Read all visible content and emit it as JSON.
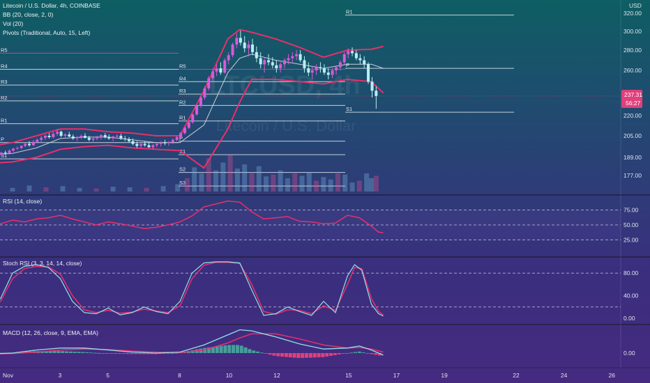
{
  "chart_data": {
    "type": "candlestick",
    "timeframe": "4h",
    "header": {
      "title": "Litecoin / U.S. Dollar, 4h, COINBASE",
      "indicators": [
        "BB (20, close, 2, 0)",
        "Vol (20)",
        "Pivots (Traditional, Auto, 15, Left)"
      ]
    },
    "watermark": {
      "symbol": "LTCUSD, 4h",
      "name": "Litecoin / U.S. Dollar"
    },
    "price_axis": {
      "unit": "USD",
      "ticks": [
        "320.00",
        "300.00",
        "280.00",
        "260.00",
        "220.00",
        "205.00",
        "189.00",
        "177.00"
      ],
      "tick_values": [
        320,
        300,
        280,
        260,
        220,
        205,
        189,
        177
      ],
      "current_price": "237.31",
      "countdown": "56:27"
    },
    "x_axis": {
      "ticks": [
        "Nov",
        "3",
        "5",
        "8",
        "10",
        "12",
        "15",
        "17",
        "19",
        "22",
        "24",
        "26"
      ],
      "tick_days": [
        1,
        3,
        5,
        8,
        10,
        12,
        15,
        17,
        19,
        22,
        24,
        26
      ]
    },
    "candles": [
      [
        0.2,
        190,
        191,
        188,
        190.5
      ],
      [
        0.37,
        190.5,
        192,
        189.5,
        191
      ],
      [
        0.53,
        191,
        193,
        190,
        192.5
      ],
      [
        0.7,
        192.5,
        194,
        191.5,
        192
      ],
      [
        0.87,
        192,
        195,
        191,
        194
      ],
      [
        1.03,
        194,
        196,
        193,
        195.5
      ],
      [
        1.2,
        195.5,
        197,
        194.5,
        196
      ],
      [
        1.37,
        196,
        198,
        195,
        197.5
      ],
      [
        1.53,
        197.5,
        200,
        196.5,
        199
      ],
      [
        1.7,
        199,
        201,
        197,
        198
      ],
      [
        1.87,
        198,
        202,
        197.5,
        200.5
      ],
      [
        2.03,
        200.5,
        203,
        199.5,
        202
      ],
      [
        2.2,
        202,
        205,
        200,
        203.5
      ],
      [
        2.37,
        203.5,
        206,
        202,
        205
      ],
      [
        2.53,
        205,
        207,
        203,
        204
      ],
      [
        2.7,
        204,
        208,
        203,
        206.5
      ],
      [
        2.87,
        206.5,
        210,
        205,
        208
      ],
      [
        3.03,
        208,
        209,
        204,
        205
      ],
      [
        3.2,
        205,
        207,
        203,
        206
      ],
      [
        3.37,
        206,
        208,
        204,
        204.5
      ],
      [
        3.53,
        204.5,
        206,
        202,
        203
      ],
      [
        3.7,
        203,
        205,
        201,
        204
      ],
      [
        3.87,
        204,
        206,
        202.5,
        205
      ],
      [
        4.03,
        205,
        207,
        203,
        203.5
      ],
      [
        4.2,
        203.5,
        205,
        201,
        202
      ],
      [
        4.37,
        202,
        204,
        200,
        203
      ],
      [
        4.53,
        203,
        205,
        201.5,
        204
      ],
      [
        4.7,
        204,
        206,
        202,
        205.5
      ],
      [
        4.87,
        205.5,
        207,
        203,
        204
      ],
      [
        5.03,
        204,
        206,
        202,
        203
      ],
      [
        5.2,
        203,
        205,
        201,
        204.5
      ],
      [
        5.37,
        204.5,
        206,
        203,
        205
      ],
      [
        5.53,
        205,
        206.5,
        202,
        203
      ],
      [
        5.7,
        203,
        205,
        201,
        202.5
      ],
      [
        5.87,
        202.5,
        204,
        200,
        201
      ],
      [
        6.03,
        201,
        203,
        198,
        199
      ],
      [
        6.2,
        199,
        201,
        196,
        197.5
      ],
      [
        6.37,
        197.5,
        200,
        196,
        199
      ],
      [
        6.53,
        199,
        201,
        197,
        198
      ],
      [
        6.7,
        198,
        200,
        196,
        196.5
      ],
      [
        6.87,
        196.5,
        199,
        195,
        198
      ],
      [
        7.03,
        198,
        200,
        196.5,
        199
      ],
      [
        7.2,
        199,
        201,
        197,
        200
      ],
      [
        7.37,
        200,
        202,
        198,
        199.5
      ],
      [
        7.53,
        199.5,
        201,
        197.5,
        200.5
      ],
      [
        7.7,
        200.5,
        203,
        199,
        202
      ],
      [
        7.87,
        202,
        205,
        201,
        204
      ],
      [
        8.03,
        204,
        208,
        203,
        207
      ],
      [
        8.2,
        207,
        212,
        206,
        211
      ],
      [
        8.37,
        211,
        216,
        210,
        215
      ],
      [
        8.53,
        215,
        222,
        214,
        221
      ],
      [
        8.7,
        221,
        230,
        220,
        229
      ],
      [
        8.87,
        229,
        238,
        227,
        236
      ],
      [
        9.03,
        236,
        246,
        234,
        244
      ],
      [
        9.2,
        244,
        255,
        242,
        253
      ],
      [
        9.37,
        253,
        262,
        250,
        259
      ],
      [
        9.53,
        259,
        266,
        255,
        262
      ],
      [
        9.7,
        262,
        268,
        256,
        258
      ],
      [
        9.87,
        258,
        272,
        257,
        270
      ],
      [
        10.03,
        270,
        278,
        266,
        275
      ],
      [
        10.2,
        275,
        288,
        273,
        286
      ],
      [
        10.37,
        286,
        298,
        282,
        293
      ],
      [
        10.53,
        293,
        301,
        285,
        288
      ],
      [
        10.7,
        288,
        295,
        278,
        282
      ],
      [
        10.87,
        282,
        290,
        274,
        286
      ],
      [
        11.03,
        286,
        292,
        275,
        278
      ],
      [
        11.2,
        278,
        284,
        268,
        272
      ],
      [
        11.37,
        272,
        278,
        262,
        266
      ],
      [
        11.53,
        266,
        272,
        258,
        270
      ],
      [
        11.7,
        270,
        276,
        265,
        268
      ],
      [
        11.87,
        268,
        273,
        262,
        265
      ],
      [
        12.03,
        265,
        270,
        258,
        262
      ],
      [
        12.2,
        262,
        268,
        258,
        266
      ],
      [
        12.37,
        266,
        272,
        262,
        270
      ],
      [
        12.53,
        270,
        276,
        266,
        272
      ],
      [
        12.7,
        272,
        278,
        268,
        274
      ],
      [
        12.87,
        274,
        280,
        270,
        276
      ],
      [
        13.03,
        276,
        280,
        268,
        270
      ],
      [
        13.2,
        270,
        274,
        258,
        262
      ],
      [
        13.37,
        262,
        268,
        255,
        258
      ],
      [
        13.53,
        258,
        264,
        252,
        260
      ],
      [
        13.7,
        260,
        266,
        256,
        263
      ],
      [
        13.87,
        263,
        268,
        258,
        262
      ],
      [
        14.03,
        262,
        266,
        256,
        258
      ],
      [
        14.2,
        258,
        262,
        252,
        256
      ],
      [
        14.37,
        256,
        262,
        253,
        260
      ],
      [
        14.53,
        260,
        265,
        256,
        263
      ],
      [
        14.7,
        263,
        270,
        260,
        268
      ],
      [
        14.87,
        268,
        278,
        266,
        276
      ],
      [
        15.03,
        276,
        282,
        272,
        279
      ],
      [
        15.2,
        279,
        283,
        274,
        277
      ],
      [
        15.37,
        277,
        280,
        270,
        272
      ],
      [
        15.53,
        272,
        276,
        266,
        270
      ],
      [
        15.7,
        270,
        274,
        262,
        266
      ],
      [
        15.87,
        266,
        268,
        248,
        250
      ],
      [
        16.03,
        250,
        254,
        236,
        242
      ],
      [
        16.2,
        242,
        246,
        226,
        237.3
      ]
    ],
    "bollinger": {
      "x": [
        0,
        1,
        2,
        3,
        4,
        5,
        6,
        7,
        8,
        9,
        10,
        10.5,
        11,
        12,
        13,
        14,
        15,
        16,
        16.5
      ],
      "upper": [
        197,
        200,
        205,
        210,
        210,
        208,
        207,
        205,
        205,
        242,
        292,
        302,
        299,
        292,
        283,
        273,
        280,
        281,
        284
      ],
      "basis": [
        191,
        192,
        196,
        203,
        204,
        204,
        202,
        200,
        200,
        213,
        258,
        272,
        276,
        270,
        266,
        262,
        266,
        266,
        262
      ],
      "lower": [
        185,
        186,
        189,
        195,
        197,
        198,
        196,
        195,
        194,
        182,
        210,
        232,
        252,
        252,
        250,
        248,
        252,
        250,
        240
      ]
    },
    "volume": {
      "x": [
        0.3,
        1,
        1.7,
        2.4,
        3.1,
        3.8,
        4.5,
        5.2,
        5.9,
        6.6,
        7.3,
        7.9,
        8.3,
        8.6,
        8.9,
        9.2,
        9.5,
        9.8,
        10.1,
        10.4,
        10.7,
        11,
        11.3,
        11.6,
        11.9,
        12.2,
        12.5,
        12.8,
        13.1,
        13.4,
        13.7,
        14,
        14.3,
        14.6,
        14.9,
        15.2,
        15.5,
        15.8,
        16,
        16.2
      ],
      "values": [
        8,
        6,
        10,
        7,
        9,
        6,
        5,
        8,
        7,
        6,
        9,
        12,
        22,
        40,
        30,
        55,
        35,
        48,
        60,
        38,
        45,
        30,
        42,
        25,
        28,
        35,
        22,
        30,
        26,
        32,
        18,
        24,
        20,
        30,
        28,
        15,
        18,
        30,
        22,
        26
      ]
    },
    "pivots": [
      {
        "section": "left",
        "levels": [
          {
            "label": "R5",
            "value": 277
          },
          {
            "label": "R4",
            "value": 261
          },
          {
            "label": "R3",
            "value": 247
          },
          {
            "label": "R2",
            "value": 233
          },
          {
            "label": "R1",
            "value": 214
          },
          {
            "label": "P",
            "value": 200
          },
          {
            "label": "S1",
            "value": 188
          }
        ]
      },
      {
        "section": "middle",
        "levels": [
          {
            "label": "R5",
            "value": 261
          },
          {
            "label": "R4",
            "value": 250
          },
          {
            "label": "R3",
            "value": 239
          },
          {
            "label": "R2",
            "value": 229
          },
          {
            "label": "R1",
            "value": 216
          },
          {
            "label": "P",
            "value": 201
          },
          {
            "label": "S1",
            "value": 191
          },
          {
            "label": "S2",
            "value": 179
          },
          {
            "label": "S3",
            "value": 170
          }
        ]
      },
      {
        "section": "right",
        "levels": [
          {
            "label": "R1",
            "value": 318
          },
          {
            "label": "P",
            "value": 262
          },
          {
            "label": "S1",
            "value": 223
          }
        ]
      }
    ],
    "rsi": {
      "title": "RSI (14, close)",
      "ticks": [
        "75.00",
        "50.00",
        "25.00"
      ],
      "tick_values": [
        75,
        50,
        25
      ],
      "x": [
        0,
        0.5,
        1,
        1.5,
        2,
        2.5,
        3,
        3.5,
        4,
        4.5,
        5,
        5.5,
        6,
        6.5,
        7,
        7.5,
        8,
        8.5,
        9,
        9.5,
        10,
        10.5,
        11,
        11.5,
        12,
        12.5,
        13,
        13.5,
        14,
        14.5,
        15,
        15.5,
        16,
        16.3,
        16.5
      ],
      "values": [
        48,
        52,
        58,
        55,
        60,
        62,
        66,
        60,
        55,
        50,
        55,
        52,
        48,
        44,
        46,
        50,
        55,
        65,
        80,
        85,
        90,
        88,
        72,
        60,
        62,
        64,
        56,
        55,
        52,
        53,
        66,
        62,
        48,
        38,
        37
      ]
    },
    "stoch_rsi": {
      "title": "Stoch RSI (3, 3, 14, 14, close)",
      "ticks": [
        "80.00",
        "40.00",
        "0.00"
      ],
      "tick_values": [
        80,
        40,
        0
      ],
      "x": [
        0,
        0.5,
        1,
        1.5,
        2,
        2.5,
        3,
        3.5,
        4,
        4.5,
        5,
        5.5,
        6,
        6.5,
        7,
        7.5,
        8,
        8.5,
        9,
        9.5,
        10,
        10.5,
        11,
        11.5,
        12,
        12.5,
        13,
        13.5,
        14,
        14.5,
        15,
        15.3,
        15.6,
        16,
        16.3,
        16.5
      ],
      "k": [
        18,
        35,
        80,
        92,
        95,
        90,
        70,
        30,
        10,
        8,
        18,
        6,
        10,
        20,
        12,
        8,
        30,
        80,
        98,
        100,
        100,
        98,
        50,
        5,
        8,
        20,
        12,
        5,
        30,
        10,
        75,
        95,
        85,
        25,
        8,
        4
      ],
      "d": [
        22,
        30,
        70,
        88,
        92,
        91,
        78,
        40,
        15,
        10,
        14,
        9,
        11,
        16,
        13,
        10,
        22,
        70,
        94,
        99,
        99,
        97,
        60,
        12,
        7,
        15,
        14,
        8,
        22,
        14,
        60,
        90,
        88,
        35,
        12,
        6
      ]
    },
    "macd": {
      "title": "MACD (12, 26, close, 9, EMA, EMA)",
      "ticks": [
        "0.00"
      ],
      "tick_values": [
        0
      ],
      "x": [
        0,
        1,
        2,
        3,
        4,
        5,
        6,
        7,
        8,
        9,
        10,
        10.5,
        11,
        12,
        13,
        14,
        15,
        15.5,
        16,
        16.5
      ],
      "macd": [
        -1,
        0,
        3,
        5,
        5,
        3,
        1,
        0,
        1,
        8,
        18,
        23,
        22,
        16,
        9,
        4,
        5,
        7,
        3,
        -2
      ],
      "signal": [
        -1,
        -0.5,
        1,
        3,
        4,
        3.5,
        2,
        1,
        0.5,
        3,
        10,
        15,
        19,
        19,
        14,
        8,
        5,
        5.5,
        4,
        1
      ],
      "hist": [
        0,
        0.5,
        2,
        2,
        1,
        -0.5,
        -1,
        -1,
        0.5,
        5,
        8,
        8,
        3,
        -3,
        -5,
        -4,
        0,
        1.5,
        -1,
        -3
      ]
    }
  }
}
